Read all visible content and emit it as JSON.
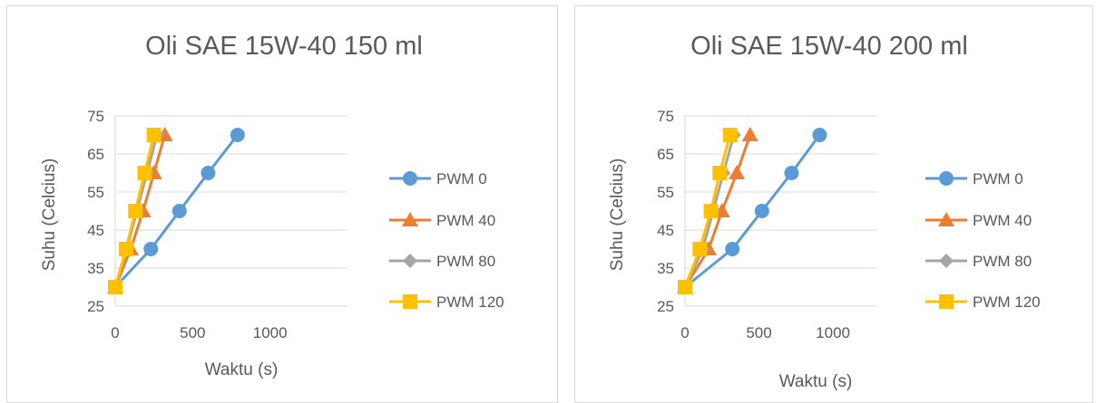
{
  "chart_data": [
    {
      "type": "scatter",
      "title": "Oli SAE 15W-40 150 ml",
      "xlabel": "Waktu (s)",
      "ylabel": "Suhu (Celcius)",
      "xlim": [
        0,
        1500
      ],
      "ylim": [
        25,
        75
      ],
      "x_ticks": [
        "0",
        "500",
        "1000"
      ],
      "y_ticks": [
        "25",
        "35",
        "45",
        "55",
        "65",
        "75"
      ],
      "grid": "horizontal",
      "legend_position": "right",
      "series": [
        {
          "name": "PWM 0",
          "color": "#5b9bd5",
          "marker": "circle",
          "points": [
            [
              0,
              30
            ],
            [
              230,
              40
            ],
            [
              415,
              50
            ],
            [
              600,
              60
            ],
            [
              790,
              70
            ]
          ]
        },
        {
          "name": "PWM 40",
          "color": "#ed7d31",
          "marker": "triangle",
          "points": [
            [
              0,
              30
            ],
            [
              100,
              40
            ],
            [
              180,
              50
            ],
            [
              250,
              60
            ],
            [
              320,
              70
            ]
          ]
        },
        {
          "name": "PWM 80",
          "color": "#a5a5a5",
          "marker": "diamond",
          "points": [
            [
              0,
              30
            ],
            [
              75,
              40
            ],
            [
              140,
              50
            ],
            [
              205,
              60
            ],
            [
              270,
              70
            ]
          ]
        },
        {
          "name": "PWM 120",
          "color": "#ffc000",
          "marker": "square",
          "points": [
            [
              0,
              30
            ],
            [
              70,
              40
            ],
            [
              130,
              50
            ],
            [
              190,
              60
            ],
            [
              250,
              70
            ]
          ]
        }
      ]
    },
    {
      "type": "scatter",
      "title": "Oli SAE 15W-40 200 ml",
      "xlabel": "Waktu (s)",
      "ylabel": "Suhu (Celcius)",
      "xlim": [
        0,
        1300
      ],
      "ylim": [
        25,
        75
      ],
      "x_ticks": [
        "0",
        "500",
        "1000"
      ],
      "y_ticks": [
        "25",
        "35",
        "45",
        "55",
        "65",
        "75"
      ],
      "grid": "horizontal",
      "legend_position": "right",
      "series": [
        {
          "name": "PWM 0",
          "color": "#5b9bd5",
          "marker": "circle",
          "points": [
            [
              0,
              30
            ],
            [
              320,
              40
            ],
            [
              520,
              50
            ],
            [
              720,
              60
            ],
            [
              910,
              70
            ]
          ]
        },
        {
          "name": "PWM 40",
          "color": "#ed7d31",
          "marker": "triangle",
          "points": [
            [
              0,
              30
            ],
            [
              160,
              40
            ],
            [
              250,
              50
            ],
            [
              350,
              60
            ],
            [
              440,
              70
            ]
          ]
        },
        {
          "name": "PWM 80",
          "color": "#a5a5a5",
          "marker": "diamond",
          "points": [
            [
              0,
              30
            ],
            [
              120,
              40
            ],
            [
              190,
              50
            ],
            [
              260,
              60
            ],
            [
              330,
              70
            ]
          ]
        },
        {
          "name": "PWM 120",
          "color": "#ffc000",
          "marker": "square",
          "points": [
            [
              0,
              30
            ],
            [
              100,
              40
            ],
            [
              175,
              50
            ],
            [
              235,
              60
            ],
            [
              305,
              70
            ]
          ]
        }
      ]
    }
  ]
}
